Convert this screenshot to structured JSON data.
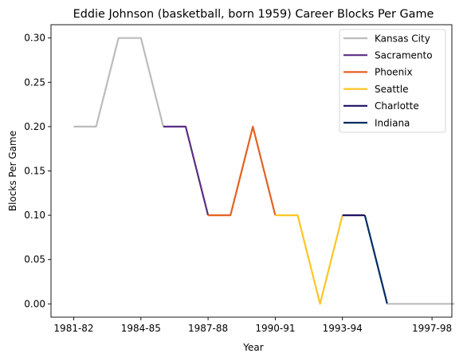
{
  "chart_data": {
    "type": "line",
    "title": "Eddie Johnson (basketball, born 1959) Career Blocks Per Game",
    "xlabel": "Year",
    "ylabel": "Blocks Per Game",
    "x_tick_labels": [
      "1981-82",
      "1984-85",
      "1987-88",
      "1990-91",
      "1993-94",
      "1997-98"
    ],
    "y_tick_labels": [
      "0.00",
      "0.05",
      "0.10",
      "0.15",
      "0.20",
      "0.25",
      "0.30"
    ],
    "ylim": [
      -0.015,
      0.315
    ],
    "legend_position": "top-right",
    "grid": false,
    "series": [
      {
        "name": "Kansas City",
        "color": "#bcbcbc",
        "points": [
          {
            "x": "1981-82",
            "y": 0.2
          },
          {
            "x": "1982-83",
            "y": 0.2
          },
          {
            "x": "1983-84",
            "y": 0.3
          },
          {
            "x": "1984-85",
            "y": 0.3
          },
          {
            "x": "1985-86",
            "y": 0.2
          }
        ]
      },
      {
        "name": "Sacramento",
        "color": "#5b2c83",
        "points": [
          {
            "x": "1985-86",
            "y": 0.2
          },
          {
            "x": "1986-87",
            "y": 0.2
          },
          {
            "x": "1987-88",
            "y": 0.1
          }
        ]
      },
      {
        "name": "Phoenix",
        "color": "#e56020",
        "points": [
          {
            "x": "1987-88",
            "y": 0.1
          },
          {
            "x": "1988-89",
            "y": 0.1
          },
          {
            "x": "1989-90",
            "y": 0.2
          },
          {
            "x": "1990-91",
            "y": 0.1
          }
        ]
      },
      {
        "name": "Seattle",
        "color": "#fec524",
        "points": [
          {
            "x": "1990-91",
            "y": 0.1
          },
          {
            "x": "1991-92",
            "y": 0.1
          },
          {
            "x": "1992-93",
            "y": 0.0
          },
          {
            "x": "1993-94",
            "y": 0.1
          }
        ]
      },
      {
        "name": "Charlotte",
        "color": "#1d1160",
        "points": [
          {
            "x": "1993-94",
            "y": 0.1
          },
          {
            "x": "1994-95",
            "y": 0.1
          }
        ]
      },
      {
        "name": "Indiana",
        "color": "#002d62",
        "points": [
          {
            "x": "1994-95",
            "y": 0.1
          },
          {
            "x": "1995-96",
            "y": 0.0
          }
        ]
      },
      {
        "name": "",
        "color": "#bcbcbc",
        "points": [
          {
            "x": "1995-96",
            "y": 0.0
          },
          {
            "x": "1996-97",
            "y": 0.0
          },
          {
            "x": "1997-98",
            "y": 0.0
          },
          {
            "x": "1998-99",
            "y": 0.0
          }
        ]
      }
    ]
  }
}
